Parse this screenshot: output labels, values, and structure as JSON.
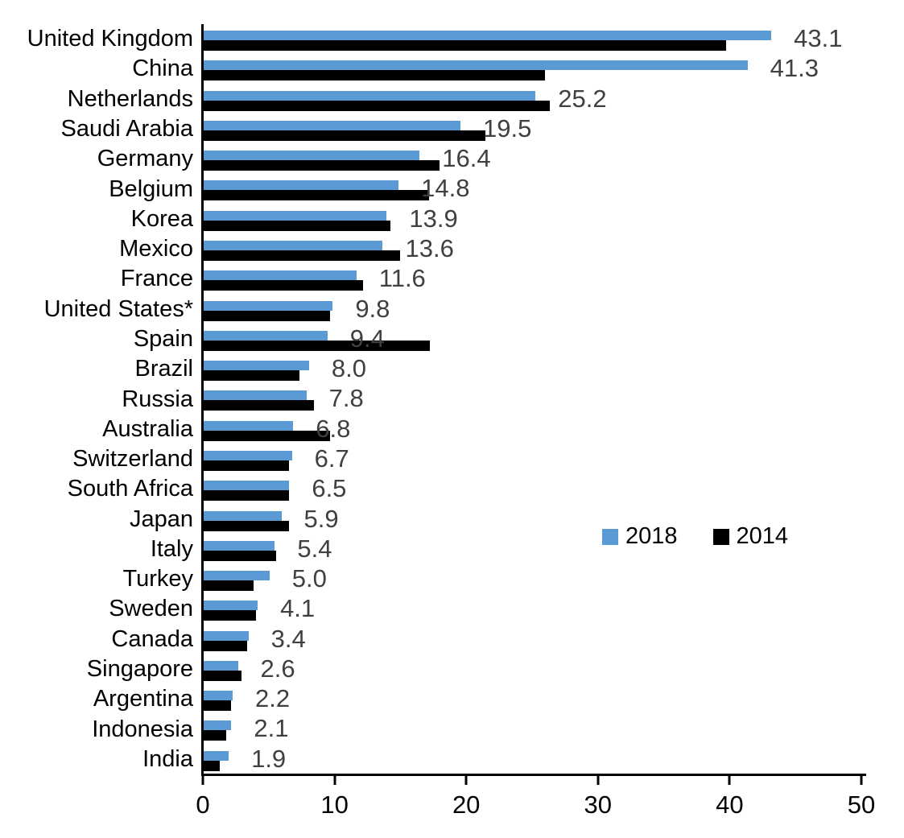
{
  "chart_data": {
    "type": "bar",
    "orientation": "horizontal",
    "title": "",
    "xlabel": "",
    "ylabel": "",
    "xlim": [
      0,
      50
    ],
    "x_ticks": [
      "0",
      "10",
      "20",
      "30",
      "40",
      "50"
    ],
    "grid": false,
    "categories": [
      "United Kingdom",
      "China",
      "Netherlands",
      "Saudi Arabia",
      "Germany",
      "Belgium",
      "Korea",
      "Mexico",
      "France",
      "United States*",
      "Spain",
      "Brazil",
      "Russia",
      "Australia",
      "Switzerland",
      "South Africa",
      "Japan",
      "Italy",
      "Turkey",
      "Sweden",
      "Canada",
      "Singapore",
      "Argentina",
      "Indonesia",
      "India"
    ],
    "series": [
      {
        "name": "2018",
        "color": "#5B9BD5",
        "values": [
          43.1,
          41.3,
          25.2,
          19.5,
          16.4,
          14.8,
          13.9,
          13.6,
          11.6,
          9.8,
          9.4,
          8.0,
          7.8,
          6.8,
          6.7,
          6.5,
          5.9,
          5.4,
          5.0,
          4.1,
          3.4,
          2.6,
          2.2,
          2.1,
          1.9
        ]
      },
      {
        "name": "2014",
        "color": "#000000",
        "values": [
          39.7,
          25.9,
          26.3,
          21.4,
          17.9,
          17.1,
          14.2,
          14.9,
          12.1,
          9.6,
          17.2,
          7.3,
          8.4,
          9.6,
          6.5,
          6.5,
          6.5,
          5.5,
          3.8,
          4.0,
          3.3,
          2.9,
          2.1,
          1.7,
          1.2
        ]
      }
    ],
    "data_labels": [
      "43.1",
      "41.3",
      "25.2",
      "19.5",
      "16.4",
      "14.8",
      "13.9",
      "13.6",
      "11.6",
      "9.8",
      "9.4",
      "8.0",
      "7.8",
      "6.8",
      "6.7",
      "6.5",
      "5.9",
      "5.4",
      "5.0",
      "4.1",
      "3.4",
      "2.6",
      "2.2",
      "2.1",
      "1.9"
    ],
    "data_label_series": "2018",
    "legend": {
      "position": "middle-right",
      "entries": [
        "2018",
        "2014"
      ]
    }
  },
  "colors": {
    "bar_2018": "#5B9BD5",
    "bar_2014": "#000000",
    "data_label": "#404040",
    "axis": "#000000"
  }
}
